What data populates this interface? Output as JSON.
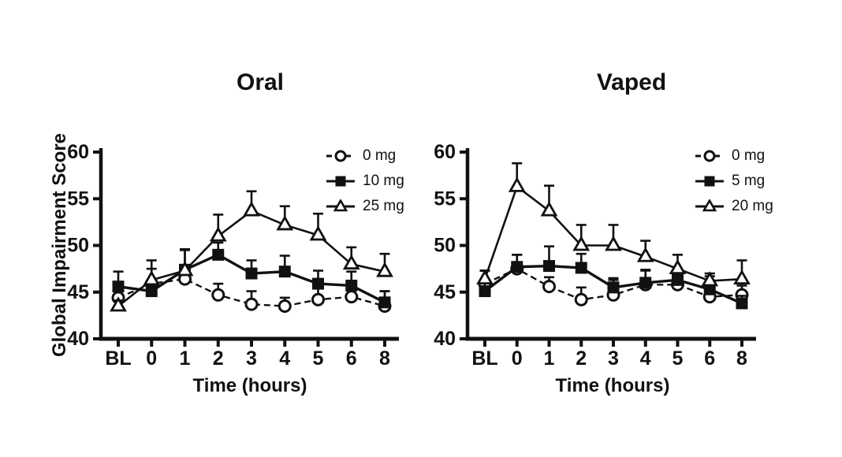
{
  "figure": {
    "background": "#ffffff",
    "ink": "#111111"
  },
  "chart_data": [
    {
      "type": "line",
      "title": "Oral",
      "xlabel": "Time (hours)",
      "ylabel": "Global Impairment Score",
      "categories": [
        "BL",
        "0",
        "1",
        "2",
        "3",
        "4",
        "5",
        "6",
        "8"
      ],
      "ylim": [
        40,
        60
      ],
      "yticks": [
        40,
        45,
        50,
        55,
        60
      ],
      "legend_position": "top-right",
      "series": [
        {
          "name": "0 mg",
          "marker": "open-circle",
          "line": "dashed",
          "values": [
            44.4,
            45.9,
            46.4,
            44.7,
            43.7,
            43.5,
            44.2,
            44.5,
            43.5
          ],
          "err_up": [
            0.9,
            1.6,
            0.9,
            1.2,
            1.4,
            0.9,
            1.2,
            1.1,
            1.6
          ]
        },
        {
          "name": "10 mg",
          "marker": "filled-square",
          "line": "solid",
          "values": [
            45.6,
            45.1,
            47.4,
            49.0,
            47.0,
            47.2,
            45.9,
            45.7,
            43.9
          ],
          "err_up": [
            1.6,
            1.2,
            2.1,
            1.3,
            1.4,
            1.7,
            1.4,
            1.5,
            1.2
          ]
        },
        {
          "name": "25 mg",
          "marker": "open-triangle",
          "line": "solid",
          "values": [
            43.5,
            46.3,
            47.3,
            51.0,
            53.7,
            52.2,
            51.1,
            48.0,
            47.2
          ],
          "err_up": [
            0.6,
            2.1,
            2.3,
            2.3,
            2.1,
            2.0,
            2.3,
            1.8,
            1.9
          ]
        }
      ]
    },
    {
      "type": "line",
      "title": "Vaped",
      "xlabel": "Time (hours)",
      "ylabel": "",
      "categories": [
        "BL",
        "0",
        "1",
        "2",
        "3",
        "4",
        "5",
        "6",
        "8"
      ],
      "ylim": [
        40,
        60
      ],
      "yticks": [
        40,
        45,
        50,
        55,
        60
      ],
      "legend_position": "top-right",
      "series": [
        {
          "name": "0 mg",
          "marker": "open-circle",
          "line": "dashed",
          "values": [
            45.9,
            47.5,
            45.6,
            44.2,
            44.7,
            45.8,
            45.8,
            44.5,
            44.7
          ],
          "err_up": [
            1.4,
            1.5,
            1.0,
            1.3,
            1.6,
            1.5,
            1.2,
            1.7,
            1.0
          ]
        },
        {
          "name": "5 mg",
          "marker": "filled-square",
          "line": "solid",
          "values": [
            45.1,
            47.7,
            47.8,
            47.6,
            45.5,
            46.0,
            46.3,
            45.3,
            43.8
          ],
          "err_up": [
            2.2,
            1.3,
            2.1,
            1.5,
            1.0,
            1.4,
            0.8,
            1.4,
            0.8
          ]
        },
        {
          "name": "20 mg",
          "marker": "open-triangle",
          "line": "solid",
          "values": [
            46.4,
            56.3,
            53.7,
            50.0,
            50.0,
            48.8,
            47.5,
            46.2,
            46.4
          ],
          "err_up": [
            0.9,
            2.5,
            2.7,
            2.2,
            2.2,
            1.7,
            1.5,
            0.8,
            2.0
          ]
        }
      ]
    }
  ]
}
